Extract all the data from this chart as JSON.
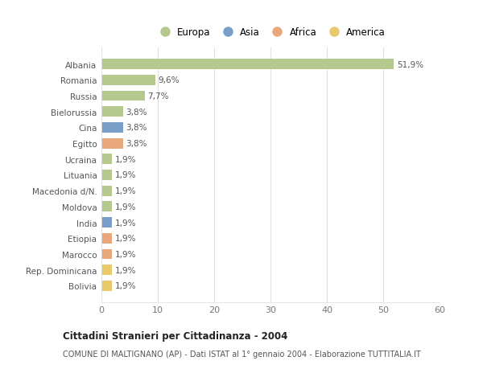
{
  "countries": [
    "Albania",
    "Romania",
    "Russia",
    "Bielorussia",
    "Cina",
    "Egitto",
    "Ucraina",
    "Lituania",
    "Macedonia d/N.",
    "Moldova",
    "India",
    "Etiopia",
    "Marocco",
    "Rep. Dominicana",
    "Bolivia"
  ],
  "values": [
    51.9,
    9.6,
    7.7,
    3.8,
    3.8,
    3.8,
    1.9,
    1.9,
    1.9,
    1.9,
    1.9,
    1.9,
    1.9,
    1.9,
    1.9
  ],
  "labels": [
    "51,9%",
    "9,6%",
    "7,7%",
    "3,8%",
    "3,8%",
    "3,8%",
    "1,9%",
    "1,9%",
    "1,9%",
    "1,9%",
    "1,9%",
    "1,9%",
    "1,9%",
    "1,9%",
    "1,9%"
  ],
  "colors": [
    "#b5c98e",
    "#b5c98e",
    "#b5c98e",
    "#b5c98e",
    "#7b9ec9",
    "#e8a87c",
    "#b5c98e",
    "#b5c98e",
    "#b5c98e",
    "#b5c98e",
    "#7b9ec9",
    "#e8a87c",
    "#e8a87c",
    "#e8c96b",
    "#e8c96b"
  ],
  "legend_labels": [
    "Europa",
    "Asia",
    "Africa",
    "America"
  ],
  "legend_colors": [
    "#b5c98e",
    "#7b9ec9",
    "#e8a87c",
    "#e8c96b"
  ],
  "xlim": [
    0,
    60
  ],
  "xticks": [
    0,
    10,
    20,
    30,
    40,
    50,
    60
  ],
  "title": "Cittadini Stranieri per Cittadinanza - 2004",
  "subtitle": "COMUNE DI MALTIGNANO (AP) - Dati ISTAT al 1° gennaio 2004 - Elaborazione TUTTITALIA.IT",
  "bg_color": "#ffffff",
  "plot_bg_color": "#ffffff",
  "grid_color": "#e0e0e0"
}
